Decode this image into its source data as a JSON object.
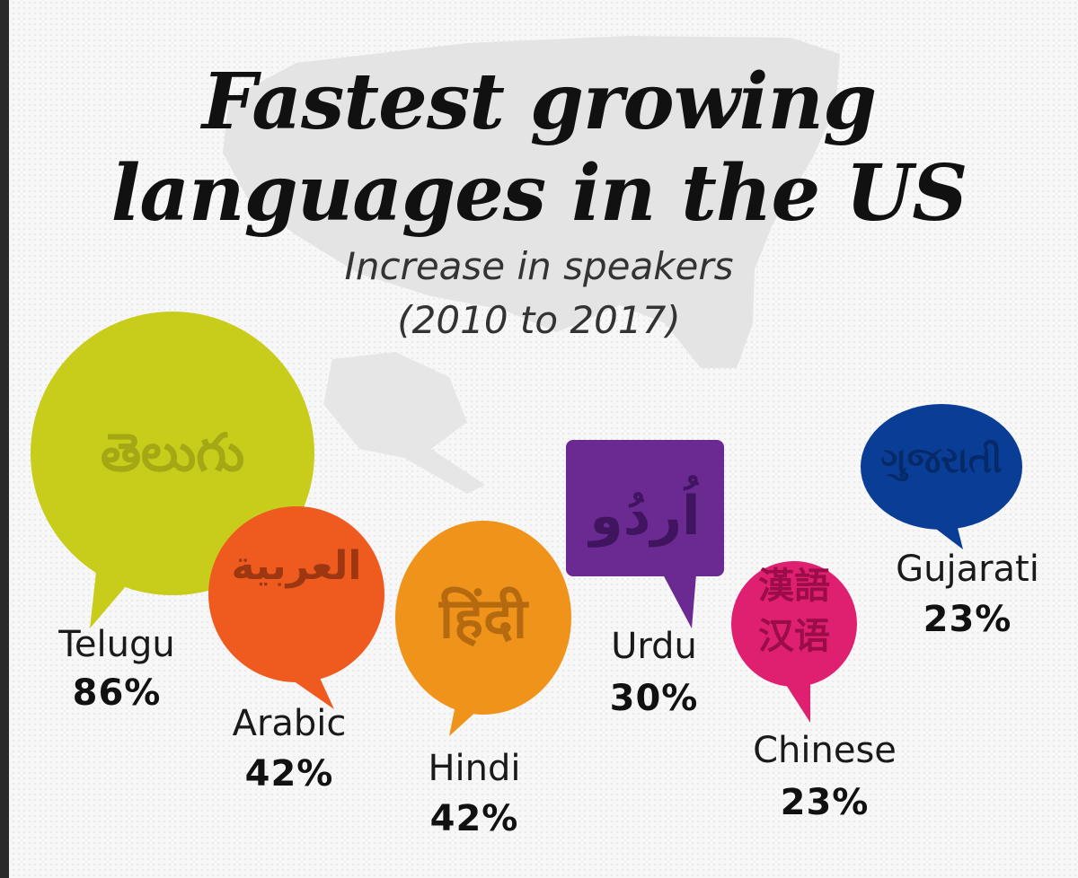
{
  "title_line1": "Fastest growing",
  "title_line2": "languages in the US",
  "subtitle_line1": "Increase in speakers",
  "subtitle_line2": "(2010 to 2017)",
  "chart_data": {
    "type": "bar",
    "title": "Fastest growing languages in the US",
    "subtitle": "Increase in speakers (2010 to 2017)",
    "categories": [
      "Telugu",
      "Arabic",
      "Hindi",
      "Urdu",
      "Chinese",
      "Gujarati"
    ],
    "values": [
      86,
      42,
      42,
      30,
      23,
      23
    ],
    "value_labels": [
      "86%",
      "42%",
      "42%",
      "30%",
      "23%",
      "23%"
    ],
    "unit": "%",
    "native_scripts": [
      "తెలుగు",
      "العربية",
      "हिंदी",
      "اُردُو",
      "漢語 汉语",
      "ગુજરાતી"
    ],
    "colors": [
      "#c8cc1a",
      "#ef5b1e",
      "#f0931b",
      "#6a2a92",
      "#df1f6f",
      "#0a3d96"
    ],
    "legend": "none",
    "grid": false
  }
}
